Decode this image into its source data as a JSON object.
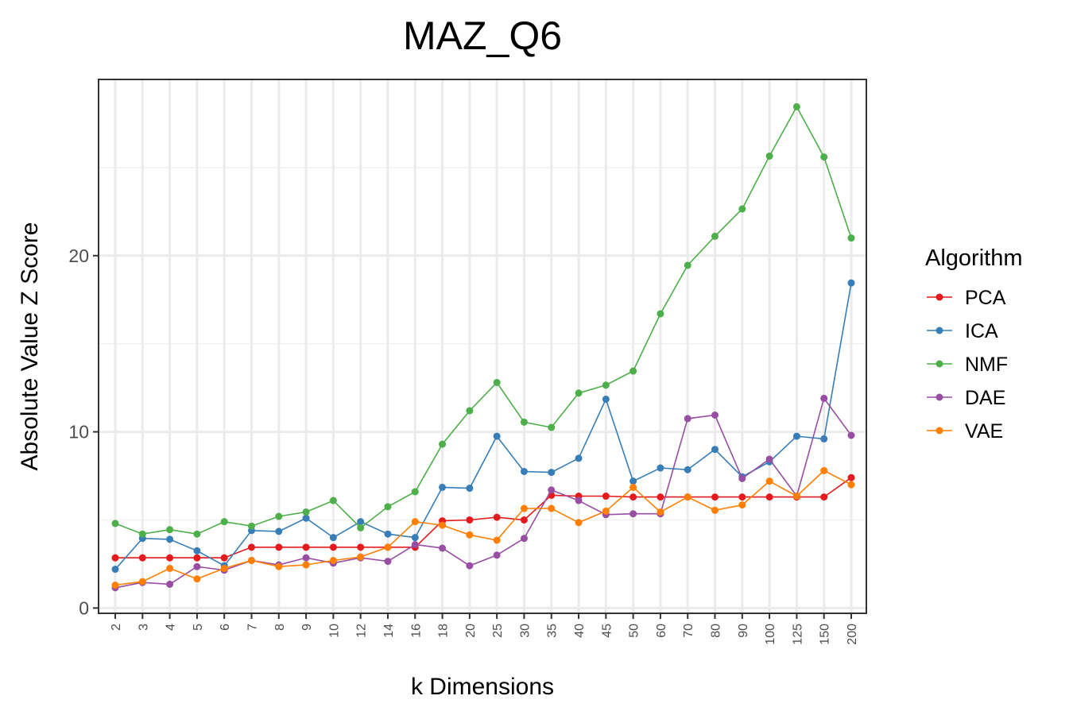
{
  "chart_data": {
    "type": "line",
    "title": "MAZ_Q6",
    "xlabel": "k Dimensions",
    "ylabel": "Absolute Value Z Score",
    "categories": [
      "2",
      "3",
      "4",
      "5",
      "6",
      "7",
      "8",
      "9",
      "10",
      "12",
      "14",
      "16",
      "18",
      "20",
      "25",
      "30",
      "35",
      "40",
      "45",
      "50",
      "60",
      "70",
      "80",
      "90",
      "100",
      "125",
      "150",
      "200"
    ],
    "ylim": [
      -0.3,
      30
    ],
    "yticks": [
      0,
      10,
      20
    ],
    "ytick_labels": [
      "0",
      "10",
      "20"
    ],
    "minor_grid_y": [
      5,
      15,
      25
    ],
    "grid": true,
    "legend": {
      "title": "Algorithm",
      "position": "right"
    },
    "series": [
      {
        "name": "PCA",
        "color": "#e41a1c",
        "values": [
          2.85,
          2.85,
          2.85,
          2.85,
          2.85,
          3.45,
          3.45,
          3.45,
          3.45,
          3.45,
          3.45,
          3.45,
          4.95,
          5.0,
          5.15,
          5.0,
          6.4,
          6.35,
          6.35,
          6.3,
          6.3,
          6.3,
          6.3,
          6.3,
          6.3,
          6.3,
          6.3,
          7.4
        ]
      },
      {
        "name": "ICA",
        "color": "#377eb8",
        "values": [
          2.2,
          3.95,
          3.9,
          3.25,
          2.4,
          4.4,
          4.35,
          5.1,
          4.0,
          4.9,
          4.2,
          4.0,
          6.85,
          6.8,
          9.75,
          7.75,
          7.7,
          8.5,
          11.85,
          7.2,
          7.95,
          7.85,
          9.0,
          7.45,
          8.3,
          9.75,
          9.6,
          18.45
        ]
      },
      {
        "name": "NMF",
        "color": "#4daf4a",
        "values": [
          4.8,
          4.2,
          4.45,
          4.2,
          4.9,
          4.65,
          5.2,
          5.45,
          6.1,
          4.55,
          5.75,
          6.6,
          9.3,
          11.2,
          12.8,
          10.55,
          10.25,
          12.2,
          12.65,
          13.45,
          16.7,
          19.45,
          21.1,
          22.65,
          25.65,
          28.45,
          25.6,
          21.0
        ]
      },
      {
        "name": "DAE",
        "color": "#984ea3",
        "values": [
          1.15,
          1.45,
          1.35,
          2.35,
          2.15,
          2.7,
          2.45,
          2.85,
          2.55,
          2.85,
          2.65,
          3.6,
          3.4,
          2.4,
          3.0,
          3.95,
          6.7,
          6.1,
          5.3,
          5.35,
          5.35,
          10.75,
          10.95,
          7.35,
          8.45,
          6.35,
          11.9,
          9.8
        ]
      },
      {
        "name": "VAE",
        "color": "#ff7f00",
        "values": [
          1.3,
          1.5,
          2.25,
          1.65,
          2.25,
          2.7,
          2.35,
          2.45,
          2.7,
          2.9,
          3.45,
          4.9,
          4.7,
          4.15,
          3.85,
          5.65,
          5.65,
          4.85,
          5.5,
          6.85,
          5.45,
          6.3,
          5.55,
          5.85,
          7.2,
          6.35,
          7.8,
          7.0
        ]
      }
    ]
  }
}
